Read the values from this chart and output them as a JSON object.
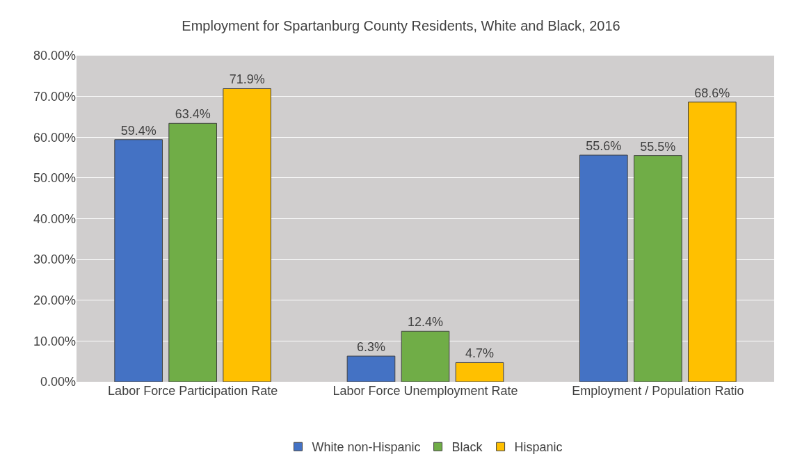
{
  "chart_data": {
    "type": "bar",
    "title": "Employment for Spartanburg County Residents, White and Black, 2016",
    "categories": [
      "Labor Force Participation Rate",
      "Labor Force Unemployment Rate",
      "Employment / Population Ratio"
    ],
    "series": [
      {
        "name": "White non-Hispanic",
        "color": "#4472c4",
        "values": [
          59.4,
          6.3,
          55.6
        ],
        "value_labels": [
          "59.4%",
          "6.3%",
          "55.6%"
        ]
      },
      {
        "name": "Black",
        "color": "#70ad47",
        "values": [
          63.4,
          12.4,
          55.5
        ],
        "value_labels": [
          "63.4%",
          "12.4%",
          "55.5%"
        ]
      },
      {
        "name": "Hispanic",
        "color": "#ffc000",
        "values": [
          71.9,
          4.7,
          68.6
        ],
        "value_labels": [
          "71.9%",
          "4.7%",
          "68.6%"
        ]
      }
    ],
    "ylim": [
      0,
      80
    ],
    "yticks": [
      {
        "value": 0,
        "label": "0.00%"
      },
      {
        "value": 10,
        "label": "10.00%"
      },
      {
        "value": 20,
        "label": "20.00%"
      },
      {
        "value": 30,
        "label": "30.00%"
      },
      {
        "value": 40,
        "label": "40.00%"
      },
      {
        "value": 50,
        "label": "50.00%"
      },
      {
        "value": 60,
        "label": "60.00%"
      },
      {
        "value": 70,
        "label": "70.00%"
      },
      {
        "value": 80,
        "label": "80.00%"
      }
    ],
    "grid": "y",
    "legend": "bottom"
  }
}
